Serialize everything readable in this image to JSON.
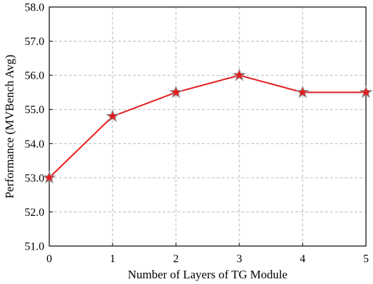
{
  "chart_data": {
    "type": "line",
    "xlabel": "Number of Layers of TG Module",
    "ylabel": "Performance (MVBench Avg)",
    "xlim": [
      0,
      5
    ],
    "ylim": [
      51.0,
      58.0
    ],
    "x": [
      0,
      1,
      2,
      3,
      4,
      5
    ],
    "x_tick_labels": [
      "0",
      "1",
      "2",
      "3",
      "4",
      "5"
    ],
    "y_ticks": [
      51.0,
      52.0,
      53.0,
      54.0,
      55.0,
      56.0,
      57.0,
      58.0
    ],
    "y_tick_labels": [
      "51.0",
      "52.0",
      "53.0",
      "54.0",
      "55.0",
      "56.0",
      "57.0",
      "58.0"
    ],
    "grid": true,
    "series": [
      {
        "values": [
          53.0,
          54.8,
          55.5,
          56.0,
          55.5,
          55.5
        ],
        "color": "#e41a1c",
        "marker": "star",
        "marker_fill": "#e41a1c",
        "marker_edge": "#999999"
      }
    ]
  }
}
